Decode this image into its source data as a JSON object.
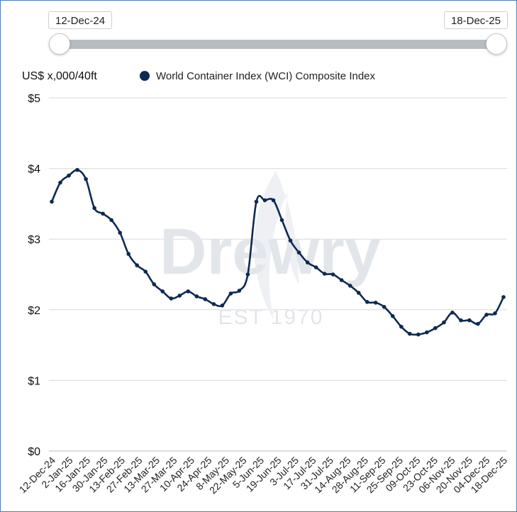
{
  "range": {
    "start": "12-Dec-24",
    "end": "18-Dec-25"
  },
  "colors": {
    "series": "#0e2a52",
    "grid": "#d9d9d9",
    "slider_track": "#b7bcc0",
    "watermark": "#e2e6ea"
  },
  "watermark": {
    "brand": "Drewry",
    "tagline": "EST 1970"
  },
  "chart_data": {
    "type": "line",
    "ylabel": "US$ x,000/40ft",
    "legend": "World Container Index (WCI) Composite Index",
    "legend_position": "top",
    "ylim": [
      0,
      5
    ],
    "y_ticks": [
      "$0",
      "$1",
      "$2",
      "$3",
      "$4",
      "$5"
    ],
    "x_tick_labels": [
      "12-Dec-24",
      "2-Jan-25",
      "16-Jan-25",
      "30-Jan-25",
      "13-Feb-25",
      "27-Feb-25",
      "13-Mar-25",
      "27-Mar-25",
      "10-Apr-25",
      "24-Apr-25",
      "8-May-25",
      "22-May-25",
      "5-Jun-25",
      "19-Jun-25",
      "3-Jul-25",
      "17-Jul-25",
      "31-Jul-25",
      "14-Aug-25",
      "28-Aug-25",
      "11-Sep-25",
      "25-Sep-25",
      "09-Oct-25",
      "23-Oct-25",
      "06-Nov-25",
      "20-Nov-25",
      "04-Dec-25",
      "18-Dec-25"
    ],
    "series": [
      {
        "name": "World Container Index (WCI) Composite Index",
        "values": [
          3.53,
          3.8,
          3.9,
          3.98,
          3.85,
          3.44,
          3.36,
          3.27,
          3.09,
          2.79,
          2.63,
          2.54,
          2.36,
          2.26,
          2.16,
          2.2,
          2.26,
          2.19,
          2.15,
          2.08,
          2.06,
          2.23,
          2.27,
          2.5,
          3.53,
          3.55,
          3.55,
          3.27,
          2.98,
          2.81,
          2.67,
          2.6,
          2.51,
          2.5,
          2.42,
          2.34,
          2.24,
          2.11,
          2.1,
          2.04,
          1.91,
          1.76,
          1.66,
          1.65,
          1.68,
          1.74,
          1.82,
          1.96,
          1.85,
          1.85,
          1.8,
          1.93,
          1.95,
          2.18
        ]
      }
    ]
  }
}
